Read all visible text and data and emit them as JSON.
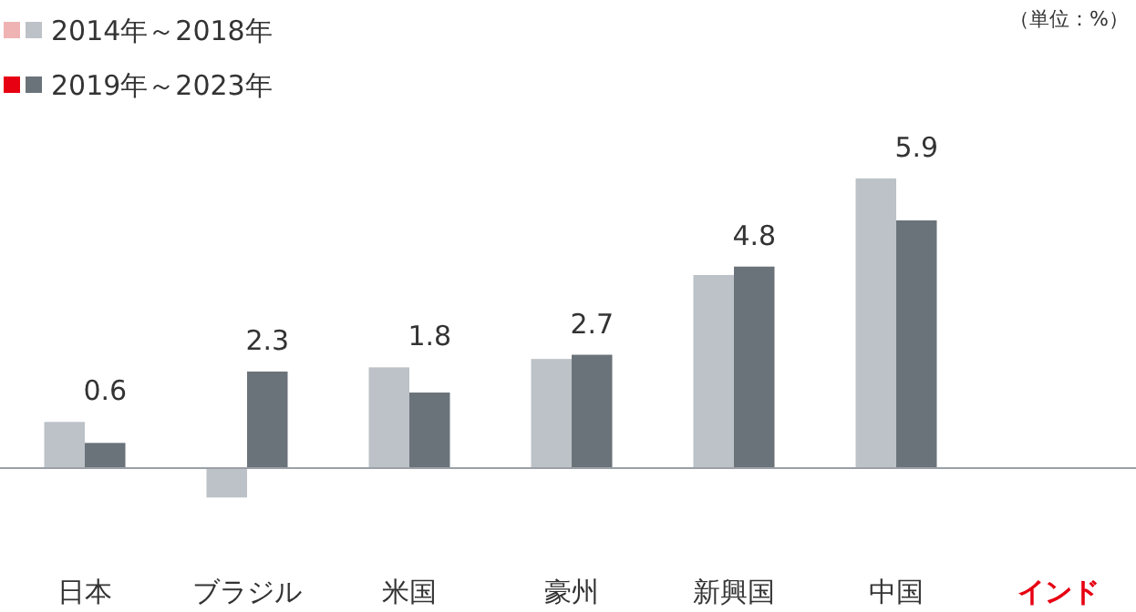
{
  "chart_data": {
    "type": "bar",
    "categories": [
      "日本",
      "ブラジル",
      "米国",
      "豪州",
      "新興国",
      "中国",
      "インド"
    ],
    "series": [
      {
        "name": "2014年～2018年",
        "color": "#bcc2c7",
        "colors": [
          "#bcc2c7",
          "#bcc2c7",
          "#bcc2c7",
          "#bcc2c7",
          "#bcc2c7",
          "#bcc2c7",
          "#f0b3b3"
        ],
        "values": [
          1.1,
          -0.7,
          2.4,
          2.6,
          4.6,
          6.9,
          null
        ]
      },
      {
        "name": "2019年～2023年",
        "color": "#6b737a",
        "colors": [
          "#6b737a",
          "#6b737a",
          "#6b737a",
          "#6b737a",
          "#6b737a",
          "#6b737a",
          "#e60012"
        ],
        "values": [
          0.6,
          2.3,
          1.8,
          2.7,
          4.8,
          5.9,
          null
        ],
        "value_labels": [
          "0.6",
          "2.3",
          "1.8",
          "2.7",
          "4.8",
          "5.9",
          null
        ]
      }
    ],
    "tick_labels": "x",
    "legend": "top left",
    "annotations": [
      "（単位：%）"
    ]
  }
}
